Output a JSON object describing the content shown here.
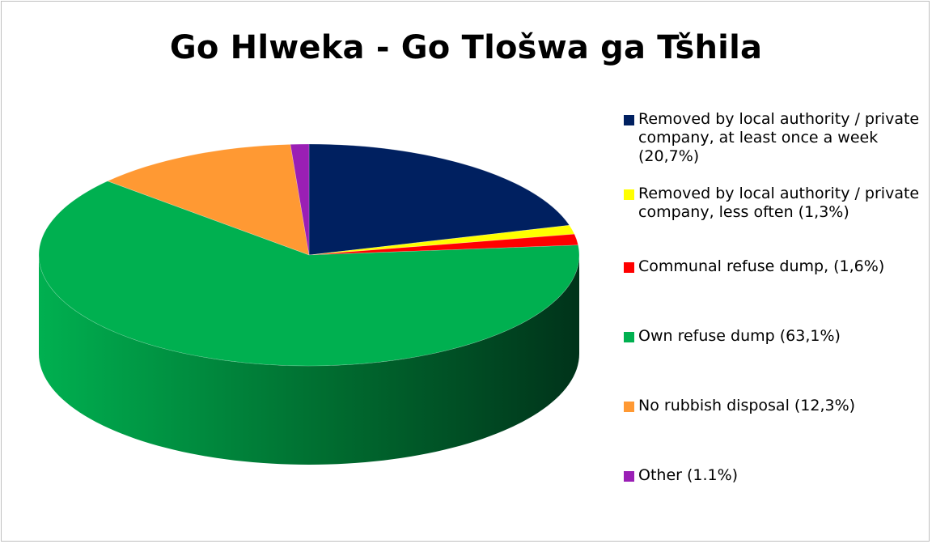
{
  "chart_data": {
    "type": "pie",
    "title": "Go Hlweka - Go Tlošwa ga Tšhila",
    "style": "3d-pie",
    "legend_position": "right",
    "slices": [
      {
        "label": "Removed by local authority / private company, at least once a week (20,7%)",
        "value": 20.7,
        "color": "#002060",
        "side_color": "#001136"
      },
      {
        "label": "Removed by local authority / private company, less often (1,3%)",
        "value": 1.3,
        "color": "#ffff00",
        "side_color": "#9c9c00"
      },
      {
        "label": "Communal refuse dump, (1,6%)",
        "value": 1.6,
        "color": "#ff0000",
        "side_color": "#8c0000"
      },
      {
        "label": "Own refuse dump (63,1%)",
        "value": 63.1,
        "color": "#00b050",
        "side_color": "#006b2f"
      },
      {
        "label": "No rubbish disposal (12,3%)",
        "value": 12.3,
        "color": "#ff9933",
        "side_color": "#a35a14"
      },
      {
        "label": "Other (1.1%)",
        "value": 1.1,
        "color": "#9a1fb5",
        "side_color": "#5a106b"
      }
    ]
  }
}
